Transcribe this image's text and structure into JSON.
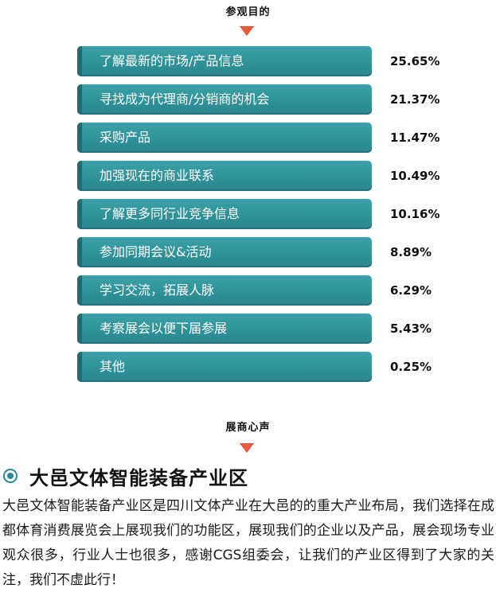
{
  "survey": {
    "title": "参观目的",
    "items": [
      {
        "label": "了解最新的市场/产品信息",
        "percent": "25.65%"
      },
      {
        "label": "寻找成为代理商/分销商的机会",
        "percent": "21.37%"
      },
      {
        "label": "采购产品",
        "percent": "11.47%"
      },
      {
        "label": "加强现在的商业联系",
        "percent": "10.49%"
      },
      {
        "label": "了解更多同行业竞争信息",
        "percent": "10.16%"
      },
      {
        "label": "参加同期会议&活动",
        "percent": "8.89%"
      },
      {
        "label": "学习交流，拓展人脉",
        "percent": "6.29%"
      },
      {
        "label": "考察展会以便下届参展",
        "percent": "5.43%"
      },
      {
        "label": "其他",
        "percent": "0.25%"
      }
    ]
  },
  "exhibitor": {
    "section_title": "展商心声",
    "name": "大邑文体智能装备产业区",
    "quote": "大邑文体智能装备产业区是四川文体产业在大邑的的重大产业布局，我们选择在成都体育消费展览会上展现我们的功能区，展现我们的企业以及产品，展会现场专业观众很多，行业人士也很多，感谢CGS组委会，让我们的产业区得到了大家的关注，我们不虚此行！"
  },
  "colors": {
    "bar": "#2f9299",
    "bar_accent": "#1d6d73",
    "arrow": "#e8472c",
    "bullet": "#2a8a93"
  },
  "icons": {
    "section_arrow": "triangle-down-icon",
    "bullet": "circle-bullet-icon"
  }
}
